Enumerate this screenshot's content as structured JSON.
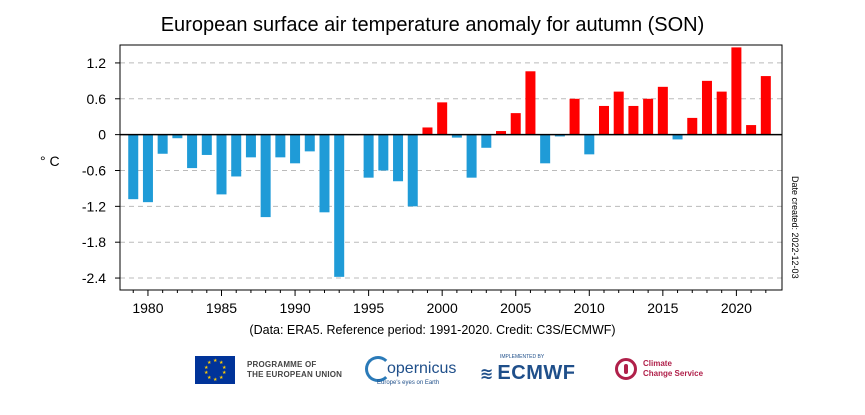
{
  "chart_data": {
    "type": "bar",
    "title": "European surface air temperature anomaly for autumn (SON)",
    "ylabel": "° C",
    "ylim": [
      -2.6,
      1.5
    ],
    "yticks": [
      1.2,
      0.6,
      0,
      -0.6,
      -1.2,
      -1.8,
      -2.4
    ],
    "ytick_labels": [
      "1.2",
      "0.6",
      "0",
      "-0.6",
      "-1.2",
      "-1.8",
      "-2.4"
    ],
    "xlim": [
      1978.1,
      2023.1
    ],
    "xticks": [
      1980,
      1985,
      1990,
      1995,
      2000,
      2005,
      2010,
      2015,
      2020
    ],
    "grid": "horizontal dashed",
    "positive_color": "#ff0000",
    "negative_color": "#1f9bd7",
    "side_note": "Date created: 2022-12-03",
    "x": [
      1979,
      1980,
      1981,
      1982,
      1983,
      1984,
      1985,
      1986,
      1987,
      1988,
      1989,
      1990,
      1991,
      1992,
      1993,
      1994,
      1995,
      1996,
      1997,
      1998,
      1999,
      2000,
      2001,
      2002,
      2003,
      2004,
      2005,
      2006,
      2007,
      2008,
      2009,
      2010,
      2011,
      2012,
      2013,
      2014,
      2015,
      2016,
      2017,
      2018,
      2019,
      2020,
      2021,
      2022
    ],
    "values": [
      -1.08,
      -1.13,
      -0.32,
      -0.06,
      -0.56,
      -0.34,
      -1.0,
      -0.7,
      -0.38,
      -1.38,
      -0.38,
      -0.48,
      -0.28,
      -1.3,
      -2.38,
      -0.01,
      -0.72,
      -0.6,
      -0.78,
      -1.2,
      0.12,
      0.54,
      -0.05,
      -0.72,
      -0.22,
      0.06,
      0.36,
      1.06,
      -0.48,
      -0.03,
      0.6,
      -0.33,
      0.48,
      0.72,
      0.48,
      0.6,
      0.8,
      -0.08,
      0.28,
      0.9,
      0.72,
      1.46,
      0.16,
      0.98
    ]
  },
  "caption": "(Data: ERA5.  Reference period: 1991-2020.  Credit: C3S/ECMWF)",
  "logos": {
    "eu_line1": "PROGRAMME OF",
    "eu_line2": "THE EUROPEAN UNION",
    "copernicus_word": "opernicus",
    "copernicus_tagline": "Europe's eyes on Earth",
    "ecmwf_tag": "IMPLEMENTED BY",
    "ecmwf_word": "ECMWF",
    "c3s_line1": "Climate",
    "c3s_line2": "Change Service"
  }
}
